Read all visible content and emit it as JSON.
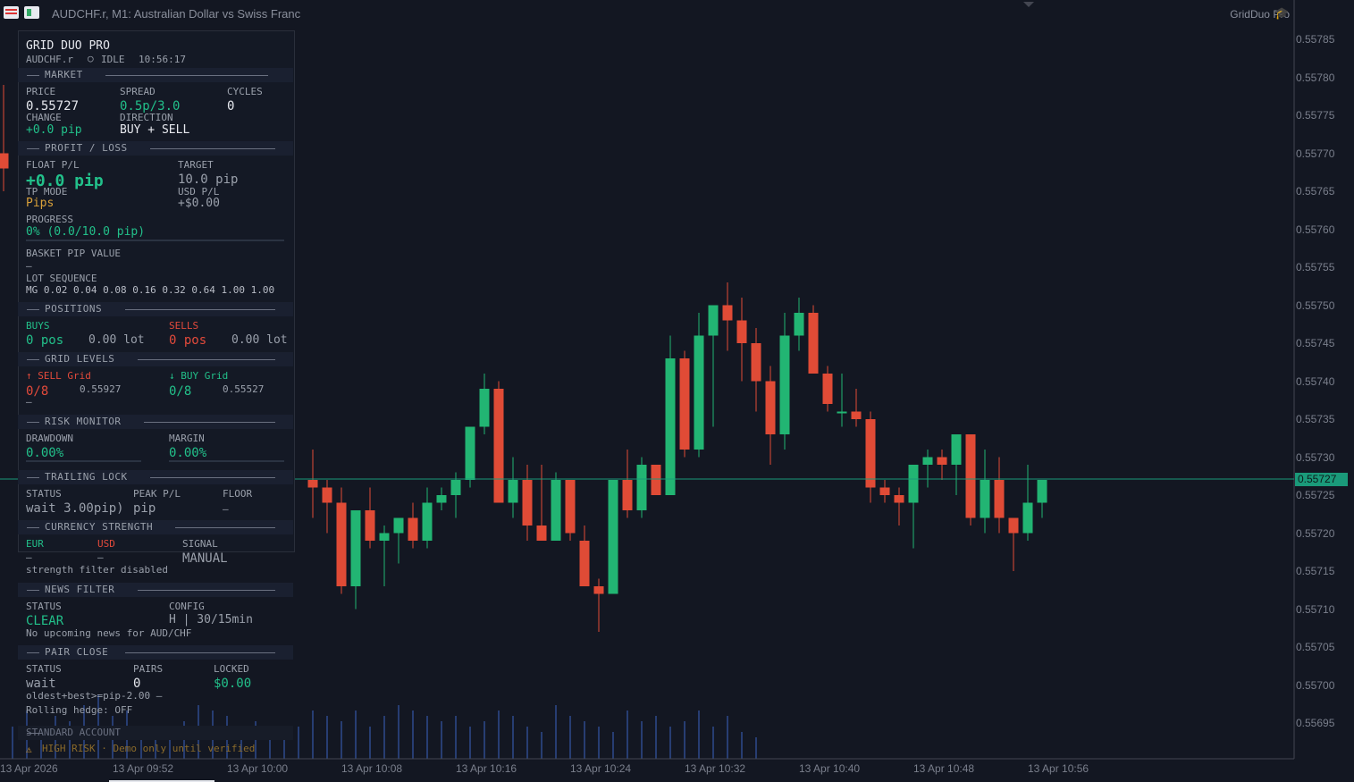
{
  "window": {
    "title": "AUDCHF.r, M1:  Australian Dollar vs Swiss Franc",
    "ea_name": "GridDuo Pro"
  },
  "price_axis": [
    "0.55785",
    "0.55780",
    "0.55775",
    "0.55770",
    "0.55765",
    "0.55760",
    "0.55755",
    "0.55750",
    "0.55745",
    "0.55740",
    "0.55735",
    "0.55730",
    "0.55725",
    "0.55720",
    "0.55715",
    "0.55710",
    "0.55705",
    "0.55700",
    "0.55695"
  ],
  "current_price": "0.55727",
  "time_axis": [
    "13 Apr 2026",
    "13 Apr 09:52",
    "13 Apr 10:00",
    "13 Apr 10:08",
    "13 Apr 10:16",
    "13 Apr 10:24",
    "13 Apr 10:32",
    "13 Apr 10:40",
    "13 Apr 10:48",
    "13 Apr 10:56"
  ],
  "colors": {
    "bull": "#22b573",
    "bear": "#e04b36",
    "volume": "#2e4a8c",
    "bg": "#131722"
  },
  "chart_data": {
    "type": "candlestick",
    "price_range": [
      0.55691,
      0.55788
    ],
    "candles": [
      [
        0.5577,
        0.55779,
        0.55765,
        0.55768
      ],
      [
        0.55727,
        0.55731,
        0.55722,
        0.55726
      ],
      [
        0.55726,
        0.55727,
        0.5572,
        0.55724
      ],
      [
        0.55724,
        0.55726,
        0.55712,
        0.55713
      ],
      [
        0.55713,
        0.55723,
        0.5571,
        0.55723
      ],
      [
        0.55723,
        0.55726,
        0.55718,
        0.55719
      ],
      [
        0.55719,
        0.55721,
        0.55713,
        0.5572
      ],
      [
        0.5572,
        0.55722,
        0.55716,
        0.55722
      ],
      [
        0.55722,
        0.55724,
        0.55718,
        0.55719
      ],
      [
        0.55719,
        0.55726,
        0.55718,
        0.55724
      ],
      [
        0.55724,
        0.55726,
        0.55723,
        0.55725
      ],
      [
        0.55725,
        0.55728,
        0.55722,
        0.55727
      ],
      [
        0.55727,
        0.55734,
        0.55726,
        0.55734
      ],
      [
        0.55734,
        0.55741,
        0.55733,
        0.55739
      ],
      [
        0.55739,
        0.5574,
        0.55724,
        0.55724
      ],
      [
        0.55724,
        0.5573,
        0.55722,
        0.55727
      ],
      [
        0.55727,
        0.55729,
        0.55719,
        0.55721
      ],
      [
        0.55721,
        0.55729,
        0.55719,
        0.55719
      ],
      [
        0.55719,
        0.55728,
        0.55719,
        0.55727
      ],
      [
        0.55727,
        0.55727,
        0.55719,
        0.5572
      ],
      [
        0.55719,
        0.55721,
        0.55713,
        0.55713
      ],
      [
        0.55713,
        0.55714,
        0.55707,
        0.55712
      ],
      [
        0.55712,
        0.55727,
        0.55712,
        0.55727
      ],
      [
        0.55727,
        0.55731,
        0.55722,
        0.55723
      ],
      [
        0.55723,
        0.5573,
        0.55722,
        0.55729
      ],
      [
        0.55729,
        0.55729,
        0.55725,
        0.55725
      ],
      [
        0.55725,
        0.55746,
        0.55725,
        0.55743
      ],
      [
        0.55743,
        0.55744,
        0.5573,
        0.55731
      ],
      [
        0.55731,
        0.55749,
        0.5573,
        0.55746
      ],
      [
        0.55746,
        0.5575,
        0.55734,
        0.5575
      ],
      [
        0.5575,
        0.55753,
        0.55744,
        0.55748
      ],
      [
        0.55748,
        0.55751,
        0.5574,
        0.55745
      ],
      [
        0.55745,
        0.55747,
        0.55736,
        0.5574
      ],
      [
        0.5574,
        0.55742,
        0.55729,
        0.55733
      ],
      [
        0.55733,
        0.55749,
        0.55731,
        0.55746
      ],
      [
        0.55746,
        0.55751,
        0.55744,
        0.55749
      ],
      [
        0.55749,
        0.5575,
        0.55741,
        0.55741
      ],
      [
        0.55741,
        0.55742,
        0.55736,
        0.55737
      ],
      [
        0.55736,
        0.55741,
        0.55734,
        0.55736
      ],
      [
        0.55736,
        0.55739,
        0.55734,
        0.55735
      ],
      [
        0.55735,
        0.55736,
        0.55724,
        0.55726
      ],
      [
        0.55726,
        0.55727,
        0.55724,
        0.55725
      ],
      [
        0.55725,
        0.55726,
        0.55721,
        0.55724
      ],
      [
        0.55724,
        0.55729,
        0.55718,
        0.55729
      ],
      [
        0.55729,
        0.55731,
        0.55726,
        0.5573
      ],
      [
        0.5573,
        0.55731,
        0.55727,
        0.55729
      ],
      [
        0.55729,
        0.55733,
        0.55725,
        0.55733
      ],
      [
        0.55733,
        0.55733,
        0.55721,
        0.55722
      ],
      [
        0.55722,
        0.55731,
        0.5572,
        0.55727
      ],
      [
        0.55727,
        0.5573,
        0.5572,
        0.55722
      ],
      [
        0.55722,
        0.55722,
        0.55715,
        0.5572
      ],
      [
        0.5572,
        0.55729,
        0.55719,
        0.55724
      ],
      [
        0.55724,
        0.55727,
        0.55722,
        0.55727
      ]
    ],
    "volume": [
      6,
      9,
      4,
      8,
      7,
      10,
      12,
      8,
      9,
      5,
      6,
      4,
      7,
      10,
      9,
      8,
      6,
      7,
      5,
      4,
      6,
      9,
      8,
      7,
      9,
      6,
      8,
      10,
      9,
      8,
      7,
      8,
      6,
      7,
      9,
      8,
      6,
      5,
      10,
      8,
      7,
      6,
      5,
      9,
      7,
      8,
      6,
      7,
      9,
      6,
      8,
      5,
      4
    ]
  },
  "panel": {
    "title": "GRID DUO PRO",
    "symbol": "AUDCHF.r",
    "state_icon": "circle-icon",
    "state": "IDLE",
    "time": "10:56:17",
    "market": {
      "header": "MARKET",
      "price_label": "PRICE",
      "price": "0.55727",
      "spread_label": "SPREAD",
      "spread": "0.5p/3.0",
      "cycles_label": "CYCLES",
      "cycles": "0",
      "change_label": "CHANGE",
      "change": "+0.0 pip",
      "direction_label": "DIRECTION",
      "direction": "BUY + SELL"
    },
    "pnl": {
      "header": "PROFIT / LOSS",
      "float_label": "FLOAT P/L",
      "float": "+0.0 pip",
      "target_label": "TARGET",
      "target": "10.0 pip",
      "tp_mode_label": "TP MODE",
      "tp_mode": "Pips",
      "usd_label": "USD P/L",
      "usd": "+$0.00",
      "progress_label": "PROGRESS",
      "progress": "0% (0.0/10.0 pip)",
      "progress_value": 0,
      "basket_label": "BASKET PIP VALUE",
      "basket": "–",
      "lot_seq_label": "LOT SEQUENCE",
      "lot_seq": "MG 0.02 0.04 0.08 0.16 0.32 0.64 1.00 1.00"
    },
    "positions": {
      "header": "POSITIONS",
      "buys_label": "BUYS",
      "buys_pos": "0 pos",
      "buys_lot": "0.00 lot",
      "sells_label": "SELLS",
      "sells_pos": "0 pos",
      "sells_lot": "0.00 lot"
    },
    "grid": {
      "header": "GRID LEVELS",
      "sell_label": "↑ SELL Grid",
      "sell_count": "0/8",
      "sell_price": "0.55927",
      "sell_sub": "–",
      "buy_label": "↓ BUY Grid",
      "buy_count": "0/8",
      "buy_price": "0.55527"
    },
    "risk": {
      "header": "RISK MONITOR",
      "dd_label": "DRAWDOWN",
      "dd": "0.00%",
      "dd_value": 0,
      "margin_label": "MARGIN",
      "margin": "0.00%",
      "margin_value": 0
    },
    "trailing": {
      "header": "TRAILING LOCK",
      "status_label": "STATUS",
      "status": "wait 3.00pip)",
      "peak_label": "PEAK P/L",
      "peak": "pip",
      "floor_label": "FLOOR",
      "floor": "–"
    },
    "strength": {
      "header": "CURRENCY STRENGTH",
      "eur_label": "EUR",
      "eur": "–",
      "usd_label": "USD",
      "usd": "–",
      "signal_label": "SIGNAL",
      "signal": "MANUAL",
      "note": "strength filter disabled"
    },
    "news": {
      "header": "NEWS FILTER",
      "status_label": "STATUS",
      "status": "CLEAR",
      "config_label": "CONFIG",
      "config": "H | 30/15min",
      "note": "No upcoming news for AUD/CHF"
    },
    "pair_close": {
      "header": "PAIR CLOSE",
      "status_label": "STATUS",
      "status": "wait",
      "pairs_label": "PAIRS",
      "pairs": "0",
      "locked_label": "LOCKED",
      "locked": "$0.00",
      "rule": "oldest+best>=pip-2.00  –",
      "hedge": "Rolling hedge: OFF"
    },
    "account": "STANDARD ACCOUNT",
    "warning_icon": "warning-icon",
    "warning": "HIGH RISK · Demo only until verified"
  }
}
